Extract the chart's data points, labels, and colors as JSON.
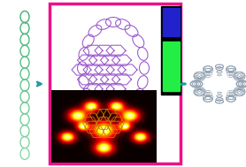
{
  "bg_color": "#ffffff",
  "left_chain_color_top": "#3cb371",
  "left_chain_color_bot": "#98d8a8",
  "nanoring_color": "#9955cc",
  "nanoring_color2": "#cc88ff",
  "nanotube_color": "#8899aa",
  "arrow_color": "#2299aa",
  "border_color": "#ee1188",
  "figsize": [
    2.78,
    1.89
  ],
  "dpi": 100
}
